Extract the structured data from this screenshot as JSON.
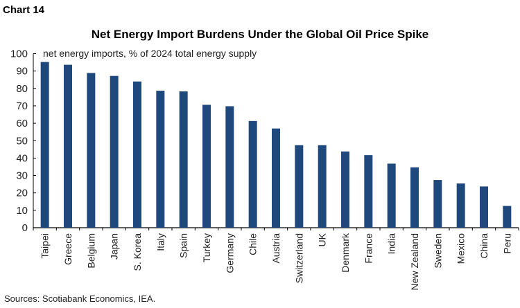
{
  "header": {
    "chart_label": "Chart 14"
  },
  "footer": {
    "source": "Sources: Scotiabank Economics, IEA."
  },
  "chart_data": {
    "type": "bar",
    "title": "Net Energy Import Burdens Under the Global Oil Price Spike",
    "ylabel": "net energy imports, % of 2024 total energy supply",
    "xlabel": "",
    "ylim": [
      0,
      100
    ],
    "yticks": [
      0,
      10,
      20,
      30,
      40,
      50,
      60,
      70,
      80,
      90,
      100
    ],
    "grid": false,
    "bar_color": "#1f497d",
    "categories": [
      "Taipei",
      "Greece",
      "Belgium",
      "Japan",
      "S. Korea",
      "Italy",
      "Spain",
      "Turkey",
      "Germany",
      "Chile",
      "Austria",
      "Switzerland",
      "UK",
      "Denmark",
      "France",
      "India",
      "New Zealand",
      "Sweden",
      "Mexico",
      "China",
      "Peru"
    ],
    "values": [
      95.2,
      93.6,
      88.9,
      87.2,
      84.0,
      78.7,
      78.3,
      70.6,
      69.8,
      61.3,
      57.0,
      47.4,
      47.4,
      43.8,
      41.7,
      36.8,
      34.7,
      27.4,
      25.4,
      23.7,
      12.5
    ]
  }
}
